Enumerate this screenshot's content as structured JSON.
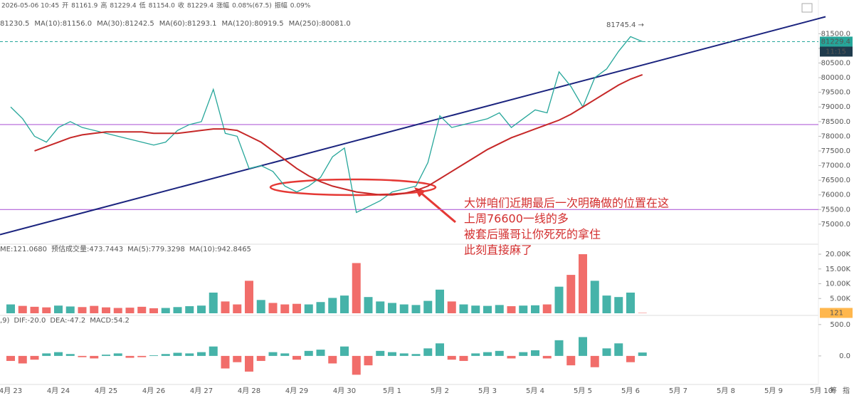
{
  "chart_data": {
    "type": "line",
    "header": [
      "2026-05-06 10:45",
      "开",
      "81161.9",
      "高",
      "81229.4",
      "低",
      "81154.0",
      "收",
      "81229.4",
      "涨幅",
      "0.08%(67.5)",
      "振幅",
      "0.09%"
    ],
    "ma_legend": [
      {
        "label": "81230.5",
        "color": "#1565c0"
      },
      {
        "label": "MA(10):81156.0",
        "color": "#e65100"
      },
      {
        "label": "MA(30):81242.5",
        "color": "#ab47bc"
      },
      {
        "label": "MA(60):81293.1",
        "color": "#26a69a"
      },
      {
        "label": "MA(120):80919.5",
        "color": "#b8860b"
      },
      {
        "label": "MA(250):80081.0",
        "color": "#c62828"
      }
    ],
    "categories": [
      "4月 23",
      null,
      null,
      null,
      "4月 24",
      null,
      null,
      null,
      "4月 25",
      null,
      null,
      null,
      "4月 26",
      null,
      null,
      null,
      "4月 27",
      null,
      null,
      null,
      "4月 28",
      null,
      null,
      null,
      "4月 29",
      null,
      null,
      null,
      "4月 30",
      null,
      null,
      null,
      "5月 1",
      null,
      null,
      null,
      "5月 2",
      null,
      null,
      null,
      "5月 3",
      null,
      null,
      null,
      "5月 4",
      null,
      null,
      null,
      "5月 5",
      null,
      null,
      null,
      "5月 6",
      null,
      null,
      null,
      "5月 7",
      null,
      null,
      null,
      "5月 8",
      null,
      null,
      null,
      "5月 9",
      null,
      null,
      null,
      "5月 10"
    ],
    "ylim": [
      74390,
      82650
    ],
    "yticks": [
      {
        "value": 75000,
        "label": "75000.0"
      },
      {
        "value": 75500,
        "label": "75500.0"
      },
      {
        "value": 76000,
        "label": "76000.0"
      },
      {
        "value": 76500,
        "label": "76500.0"
      },
      {
        "value": 77000,
        "label": "77000.0"
      },
      {
        "value": 77500,
        "label": "77500.0"
      },
      {
        "value": 78000,
        "label": "78000.0"
      },
      {
        "value": 78500,
        "label": "78500.0"
      },
      {
        "value": 79000,
        "label": "79000.0"
      },
      {
        "value": 79500,
        "label": "79500.0"
      },
      {
        "value": 80000,
        "label": "80000.0"
      },
      {
        "value": 80500,
        "label": "80500.0"
      },
      {
        "value": 81000,
        "label": "81000.0"
      },
      {
        "value": 81500,
        "label": "81500.0"
      }
    ],
    "series": [
      {
        "color": "#26a69a",
        "values": [
          79000,
          78600,
          78000,
          77800,
          78300,
          78500,
          78300,
          78200,
          78100,
          78000,
          77900,
          77800,
          77700,
          77800,
          78200,
          78400,
          78500,
          79600,
          78100,
          78000,
          76900,
          77000,
          76800,
          76300,
          76100,
          76300,
          76600,
          77300,
          77600,
          75400,
          75600,
          75800,
          76100,
          76200,
          76300,
          77100,
          78700,
          78300,
          78400,
          78500,
          78600,
          78800,
          78300,
          78600,
          78900,
          78800,
          80200,
          79700,
          79000,
          80000,
          80300,
          80900,
          81400,
          81229.4,
          null,
          null,
          null,
          null,
          null,
          null,
          null,
          null,
          null,
          null,
          null,
          null,
          null,
          null,
          null
        ]
      },
      {
        "color": "#c62828",
        "values": [
          null,
          null,
          77500,
          77650,
          77800,
          77950,
          78050,
          78100,
          78150,
          78150,
          78150,
          78150,
          78100,
          78100,
          78100,
          78150,
          78200,
          78250,
          78250,
          78200,
          78000,
          77800,
          77500,
          77200,
          76900,
          76650,
          76450,
          76300,
          76200,
          76100,
          76050,
          76000,
          76000,
          76050,
          76150,
          76300,
          76550,
          76800,
          77050,
          77300,
          77550,
          77750,
          77950,
          78100,
          78250,
          78400,
          78550,
          78750,
          79000,
          79250,
          79500,
          79750,
          79950,
          80100,
          null,
          null,
          null,
          null,
          null,
          null,
          null,
          null,
          null,
          null,
          null,
          null,
          null,
          null,
          null
        ]
      }
    ],
    "hlines": [
      {
        "value": 78400,
        "color": "#b160d8"
      },
      {
        "value": 75500,
        "color": "#b160d8"
      }
    ],
    "trendline": {
      "values": [
        74740,
        82040
      ],
      "color": "#1a237e"
    },
    "max_label": "81745.4 →",
    "time_tag": "11:15",
    "annotation": [
      "大饼咱们近期最后一次明确做的位置在这",
      "上周76600一线的多",
      "被套后骚哥让你死死的拿住",
      "此刻直接麻了"
    ],
    "volume": {
      "legend": [
        "ME:121.0680",
        "预估成交量:473.7443",
        "MA(5):779.3298",
        "MA(10):942.8465"
      ],
      "ylim": [
        0,
        22900
      ],
      "yticks": [
        {
          "value": 5000,
          "label": "5.00K"
        },
        {
          "value": 10000,
          "label": "10.00K"
        },
        {
          "value": 15000,
          "label": "15.00K"
        },
        {
          "value": 20000,
          "label": "20.00K"
        }
      ],
      "up_color": "#26a69a",
      "down_color": "#ef5350",
      "values": [
        3000,
        2500,
        2200,
        2000,
        2600,
        2300,
        2100,
        2500,
        2000,
        1800,
        1900,
        2200,
        1700,
        1800,
        2100,
        2400,
        2600,
        7000,
        4000,
        3000,
        11000,
        4500,
        3500,
        3000,
        3200,
        3000,
        3800,
        5200,
        6000,
        17000,
        5500,
        4000,
        3500,
        3000,
        2800,
        4200,
        8000,
        4000,
        3000,
        2600,
        2500,
        2800,
        2400,
        2600,
        2700,
        3000,
        9000,
        13000,
        20000,
        11000,
        6000,
        5500,
        7000,
        121
      ]
    },
    "macd": {
      "legend": [
        ",9)",
        "DIF:-20.0",
        "DEA:-47.2",
        "MACD:54.2"
      ],
      "ylim": [
        -455,
        600
      ],
      "yticks": [
        {
          "value": 0,
          "label": "0.0"
        },
        {
          "value": 500,
          "label": "500.0"
        }
      ],
      "up_color": "#26a69a",
      "down_color": "#ef5350",
      "values": [
        -80,
        -120,
        -60,
        40,
        60,
        30,
        -20,
        -40,
        20,
        40,
        -30,
        -20,
        10,
        30,
        50,
        40,
        60,
        150,
        -200,
        -100,
        -250,
        -80,
        60,
        40,
        -60,
        80,
        100,
        -120,
        150,
        -300,
        -150,
        80,
        60,
        40,
        30,
        120,
        200,
        -60,
        -80,
        40,
        60,
        80,
        -40,
        60,
        90,
        -40,
        250,
        -150,
        300,
        -180,
        120,
        200,
        -100,
        54.2
      ]
    },
    "corner_labels": [
      "筹",
      "指"
    ]
  }
}
